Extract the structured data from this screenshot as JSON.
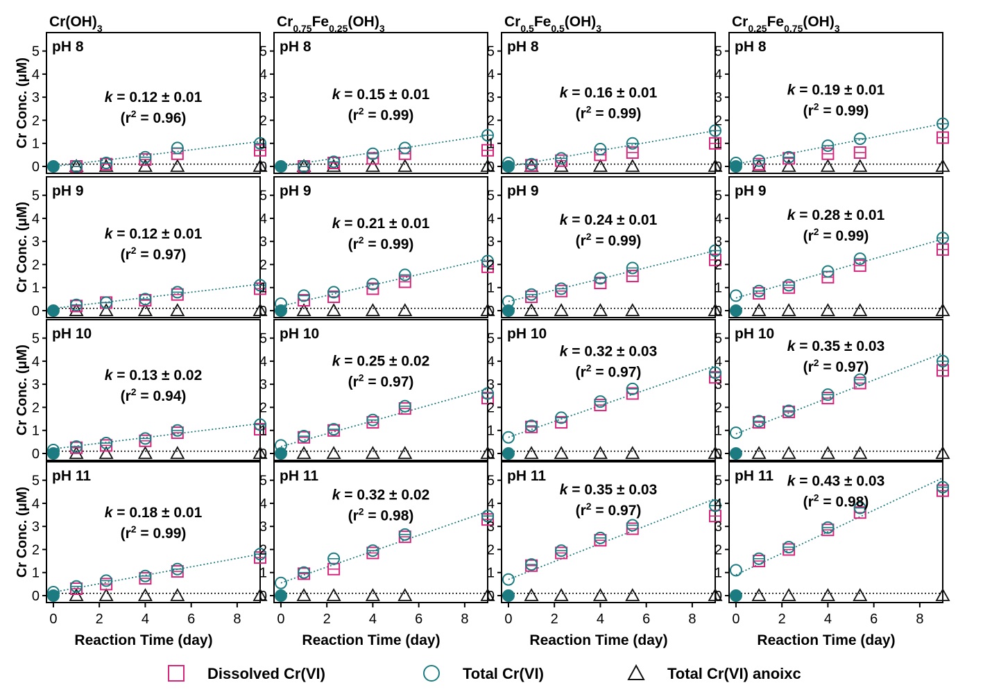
{
  "chart_data": {
    "type": "scatter",
    "figure": {
      "columns": [
        {
          "title": "Cr(OH)3",
          "title_parts": [
            {
              "t": "Cr(OH)"
            },
            {
              "t": "3",
              "sub": true
            }
          ]
        },
        {
          "title": "Cr0.75Fe0.25(OH)3",
          "title_parts": [
            {
              "t": "Cr"
            },
            {
              "t": "0.75",
              "sub": true
            },
            {
              "t": "Fe"
            },
            {
              "t": "0.25",
              "sub": true
            },
            {
              "t": "(OH)"
            },
            {
              "t": "3",
              "sub": true
            }
          ]
        },
        {
          "title": "Cr0.5Fe0.5(OH)3",
          "title_parts": [
            {
              "t": "Cr"
            },
            {
              "t": "0.5",
              "sub": true
            },
            {
              "t": "Fe"
            },
            {
              "t": "0.5",
              "sub": true
            },
            {
              "t": "(OH)"
            },
            {
              "t": "3",
              "sub": true
            }
          ]
        },
        {
          "title": "Cr0.25Fe0.75(OH)3",
          "title_parts": [
            {
              "t": "Cr"
            },
            {
              "t": "0.25",
              "sub": true
            },
            {
              "t": "Fe"
            },
            {
              "t": "0.75",
              "sub": true
            },
            {
              "t": "(OH)"
            },
            {
              "t": "3",
              "sub": true
            }
          ]
        }
      ],
      "rows": [
        "pH 8",
        "pH 9",
        "pH 10",
        "pH 11"
      ],
      "ylabel": "Cr Conc. (μM)",
      "xlabel": "Reaction Time (day)",
      "xlim": [
        -0.3,
        9.0
      ],
      "ylim": [
        -0.3,
        5.8
      ],
      "xticks": [
        0,
        2,
        4,
        6,
        8
      ],
      "yticks": [
        0,
        1,
        2,
        3,
        4,
        5
      ],
      "x": [
        0,
        1,
        2.3,
        4,
        5.4,
        9
      ],
      "legend": [
        {
          "label": "Dissolved Cr(VI)",
          "marker": "square",
          "color": "#d6247a"
        },
        {
          "label": "Total Cr(VI)",
          "marker": "circle",
          "color": "#1b7b80"
        },
        {
          "label": "Total Cr(VI) anoixc",
          "marker": "triangle",
          "color": "#111111"
        }
      ],
      "colors": {
        "dissolved": "#d6247a",
        "total": "#1b7b80",
        "anoxic": "#111111",
        "fit": "#1b7b80"
      }
    },
    "panels": [
      {
        "row": 0,
        "col": 0,
        "ph": "pH 8",
        "k": "0.12 ± 0.01",
        "r2": "0.96",
        "total": [
          0,
          0,
          0.15,
          0.4,
          0.8,
          1.0
        ],
        "dissolved": [
          0,
          0,
          0.1,
          0.3,
          0.55,
          0.7
        ],
        "anoxic": [
          0,
          0,
          0,
          0,
          0,
          0
        ],
        "fit": [
          0.0,
          1.08
        ]
      },
      {
        "row": 0,
        "col": 1,
        "ph": "pH 8",
        "k": "0.15 ± 0.01",
        "r2": "0.99",
        "total": [
          0,
          0,
          0.2,
          0.55,
          0.8,
          1.35
        ],
        "dissolved": [
          0,
          0,
          0.15,
          0.35,
          0.55,
          0.7
        ],
        "anoxic": [
          0,
          0,
          0,
          0,
          0,
          0
        ],
        "fit": [
          0.0,
          1.35
        ]
      },
      {
        "row": 0,
        "col": 2,
        "ph": "pH 8",
        "k": "0.16 ± 0.01",
        "r2": "0.99",
        "total": [
          0.15,
          0.1,
          0.35,
          0.75,
          1.0,
          1.55
        ],
        "dissolved": [
          0,
          0.05,
          0.25,
          0.5,
          0.6,
          1.0
        ],
        "anoxic": [
          0,
          0,
          0,
          0,
          0,
          0
        ],
        "fit": [
          0.0,
          1.55
        ]
      },
      {
        "row": 0,
        "col": 3,
        "ph": "pH 8",
        "k": "0.19 ± 0.01",
        "r2": "0.99",
        "total": [
          0.15,
          0.25,
          0.4,
          0.9,
          1.2,
          1.85
        ],
        "dissolved": [
          0,
          0.1,
          0.35,
          0.55,
          0.6,
          1.25
        ],
        "anoxic": [
          0,
          0,
          0,
          0,
          0,
          0
        ],
        "fit": [
          0.1,
          1.85
        ]
      },
      {
        "row": 1,
        "col": 0,
        "ph": "pH 9",
        "k": "0.12 ± 0.01",
        "r2": "0.97",
        "total": [
          0,
          0.25,
          0.35,
          0.5,
          0.8,
          1.1
        ],
        "dissolved": [
          0,
          0.2,
          0.35,
          0.45,
          0.7,
          0.95
        ],
        "anoxic": [
          0,
          0,
          0,
          0,
          0,
          0
        ],
        "fit": [
          0.1,
          1.15
        ]
      },
      {
        "row": 1,
        "col": 1,
        "ph": "pH 9",
        "k": "0.21 ± 0.01",
        "r2": "0.99",
        "total": [
          0.3,
          0.65,
          0.8,
          1.15,
          1.55,
          2.15
        ],
        "dissolved": [
          0,
          0.45,
          0.6,
          0.95,
          1.25,
          1.9
        ],
        "anoxic": [
          0,
          0,
          0,
          0,
          0,
          0
        ],
        "fit": [
          0.2,
          2.25
        ]
      },
      {
        "row": 1,
        "col": 2,
        "ph": "pH 9",
        "k": "0.24 ± 0.01",
        "r2": "0.99",
        "total": [
          0.4,
          0.7,
          0.95,
          1.4,
          1.85,
          2.6
        ],
        "dissolved": [
          0,
          0.6,
          0.85,
          1.2,
          1.5,
          2.2
        ],
        "anoxic": [
          0,
          0,
          0,
          0,
          0,
          0
        ],
        "fit": [
          0.4,
          2.6
        ]
      },
      {
        "row": 1,
        "col": 3,
        "ph": "pH 9",
        "k": "0.28 ± 0.01",
        "r2": "0.99",
        "total": [
          0.65,
          0.85,
          1.1,
          1.7,
          2.25,
          3.15
        ],
        "dissolved": [
          0,
          0.75,
          1.0,
          1.45,
          1.95,
          2.65
        ],
        "anoxic": [
          0,
          0,
          0,
          0,
          0,
          0
        ],
        "fit": [
          0.55,
          3.1
        ]
      },
      {
        "row": 2,
        "col": 0,
        "ph": "pH 10",
        "k": "0.13 ± 0.02",
        "r2": "0.94",
        "total": [
          0.15,
          0.3,
          0.45,
          0.65,
          1.0,
          1.25
        ],
        "dissolved": [
          0,
          0.25,
          0.35,
          0.55,
          0.9,
          1.05
        ],
        "anoxic": [
          0,
          0,
          0,
          0,
          0,
          0
        ],
        "fit": [
          0.2,
          1.3
        ]
      },
      {
        "row": 2,
        "col": 1,
        "ph": "pH 10",
        "k": "0.25 ± 0.02",
        "r2": "0.97",
        "total": [
          0.35,
          0.75,
          1.05,
          1.45,
          2.05,
          2.6
        ],
        "dissolved": [
          0,
          0.7,
          1.0,
          1.35,
          1.95,
          2.4
        ],
        "anoxic": [
          0,
          0,
          0,
          0,
          0,
          0
        ],
        "fit": [
          0.3,
          2.8
        ]
      },
      {
        "row": 2,
        "col": 2,
        "ph": "pH 10",
        "k": "0.32 ± 0.03",
        "r2": "0.97",
        "total": [
          0.7,
          1.2,
          1.55,
          2.25,
          2.8,
          3.5
        ],
        "dissolved": [
          0,
          1.15,
          1.35,
          2.1,
          2.6,
          3.3
        ],
        "anoxic": [
          0,
          0,
          0,
          0,
          0,
          0
        ],
        "fit": [
          0.7,
          3.8
        ]
      },
      {
        "row": 2,
        "col": 3,
        "ph": "pH 10",
        "k": "0.35 ± 0.03",
        "r2": "0.97",
        "total": [
          0.9,
          1.4,
          1.85,
          2.55,
          3.2,
          4.0
        ],
        "dissolved": [
          0,
          1.35,
          1.8,
          2.4,
          3.05,
          3.6
        ],
        "anoxic": [
          0,
          0,
          0,
          0,
          0,
          0
        ],
        "fit": [
          0.85,
          4.35
        ]
      },
      {
        "row": 3,
        "col": 0,
        "ph": "pH 11",
        "k": "0.18 ± 0.01",
        "r2": "0.99",
        "total": [
          0.15,
          0.4,
          0.65,
          0.85,
          1.15,
          1.8
        ],
        "dissolved": [
          0,
          0.3,
          0.5,
          0.75,
          1.05,
          1.65
        ],
        "anoxic": [
          0,
          0,
          0,
          0,
          0,
          0
        ],
        "fit": [
          0.15,
          1.8
        ]
      },
      {
        "row": 3,
        "col": 1,
        "ph": "pH 11",
        "k": "0.32 ± 0.02",
        "r2": "0.98",
        "total": [
          0.55,
          1.0,
          1.6,
          1.95,
          2.65,
          3.45
        ],
        "dissolved": [
          0,
          0.95,
          1.15,
          1.85,
          2.55,
          3.3
        ],
        "anoxic": [
          0,
          0,
          0,
          0,
          0,
          0
        ],
        "fit": [
          0.55,
          3.65
        ]
      },
      {
        "row": 3,
        "col": 2,
        "ph": "pH 11",
        "k": "0.35 ± 0.03",
        "r2": "0.97",
        "total": [
          0.7,
          1.35,
          1.95,
          2.5,
          3.05,
          3.9
        ],
        "dissolved": [
          0,
          1.3,
          1.85,
          2.4,
          2.9,
          3.45
        ],
        "anoxic": [
          0,
          0,
          0,
          0,
          0,
          0
        ],
        "fit": [
          0.7,
          4.2
        ]
      },
      {
        "row": 3,
        "col": 3,
        "ph": "pH 11",
        "k": "0.43 ± 0.03",
        "r2": "0.98",
        "total": [
          1.1,
          1.6,
          2.1,
          2.95,
          3.8,
          4.7
        ],
        "dissolved": [
          0,
          1.5,
          2.0,
          2.85,
          3.6,
          4.55
        ],
        "anoxic": [
          0,
          0,
          0,
          0,
          0,
          0
        ],
        "fit": [
          0.9,
          5.1
        ]
      }
    ]
  }
}
